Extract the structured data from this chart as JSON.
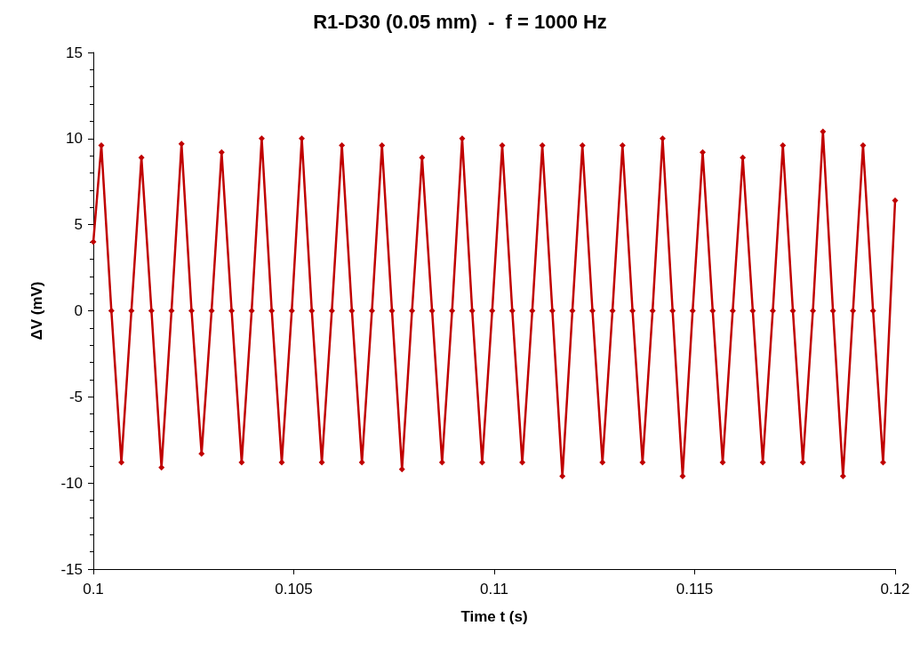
{
  "chart_data": {
    "type": "line",
    "title": "R1-D30 (0.05 mm)  -  f = 1000 Hz",
    "xlabel": "Time t (s)",
    "ylabel": "ΔV (mV)",
    "xlim": [
      0.1,
      0.12
    ],
    "xticks": [
      0.1,
      0.105,
      0.11,
      0.115,
      0.12
    ],
    "ylim": [
      -15,
      15
    ],
    "yticks": [
      -15,
      -10,
      -5,
      0,
      5,
      10,
      15
    ],
    "grid": false,
    "marker": "diamond",
    "line_style": "solid",
    "series": [
      {
        "color": "#c00000",
        "x": [
          0.1,
          0.1002,
          0.10045,
          0.1007,
          0.10095,
          0.1012,
          0.10145,
          0.1017,
          0.10195,
          0.1022,
          0.10245,
          0.1027,
          0.10295,
          0.1032,
          0.10345,
          0.1037,
          0.10395,
          0.1042,
          0.10445,
          0.1047,
          0.10495,
          0.1052,
          0.10545,
          0.1057,
          0.10595,
          0.1062,
          0.10645,
          0.1067,
          0.10695,
          0.1072,
          0.10745,
          0.1077,
          0.10795,
          0.1082,
          0.10845,
          0.1087,
          0.10895,
          0.1092,
          0.10945,
          0.1097,
          0.10995,
          0.1102,
          0.11045,
          0.1107,
          0.11095,
          0.1112,
          0.11145,
          0.1117,
          0.11195,
          0.1122,
          0.11245,
          0.1127,
          0.11295,
          0.1132,
          0.11345,
          0.1137,
          0.11395,
          0.1142,
          0.11445,
          0.1147,
          0.11495,
          0.1152,
          0.11545,
          0.1157,
          0.11595,
          0.1162,
          0.11645,
          0.1167,
          0.11695,
          0.1172,
          0.11745,
          0.1177,
          0.11795,
          0.1182,
          0.11845,
          0.1187,
          0.11895,
          0.1192,
          0.11945,
          0.1197,
          0.12
        ],
        "values": [
          4,
          9.6,
          0,
          -8.8,
          0,
          8.9,
          0,
          -9.1,
          0,
          9.7,
          0,
          -8.3,
          0,
          9.2,
          0,
          -8.8,
          0,
          10,
          0,
          -8.8,
          0,
          10,
          0,
          -8.8,
          0,
          9.6,
          0,
          -8.8,
          0,
          9.6,
          0,
          -9.2,
          0,
          8.9,
          0,
          -8.8,
          0,
          10,
          0,
          -8.8,
          0,
          9.6,
          0,
          -8.8,
          0,
          9.6,
          0,
          -9.6,
          0,
          9.6,
          0,
          -8.8,
          0,
          9.6,
          0,
          -8.8,
          0,
          10,
          0,
          -9.6,
          0,
          9.2,
          0,
          -8.8,
          0,
          8.9,
          0,
          -8.8,
          0,
          9.6,
          0,
          -8.8,
          0,
          10.4,
          0,
          -9.6,
          0,
          9.6,
          0,
          -8.8,
          6.4
        ]
      }
    ]
  }
}
